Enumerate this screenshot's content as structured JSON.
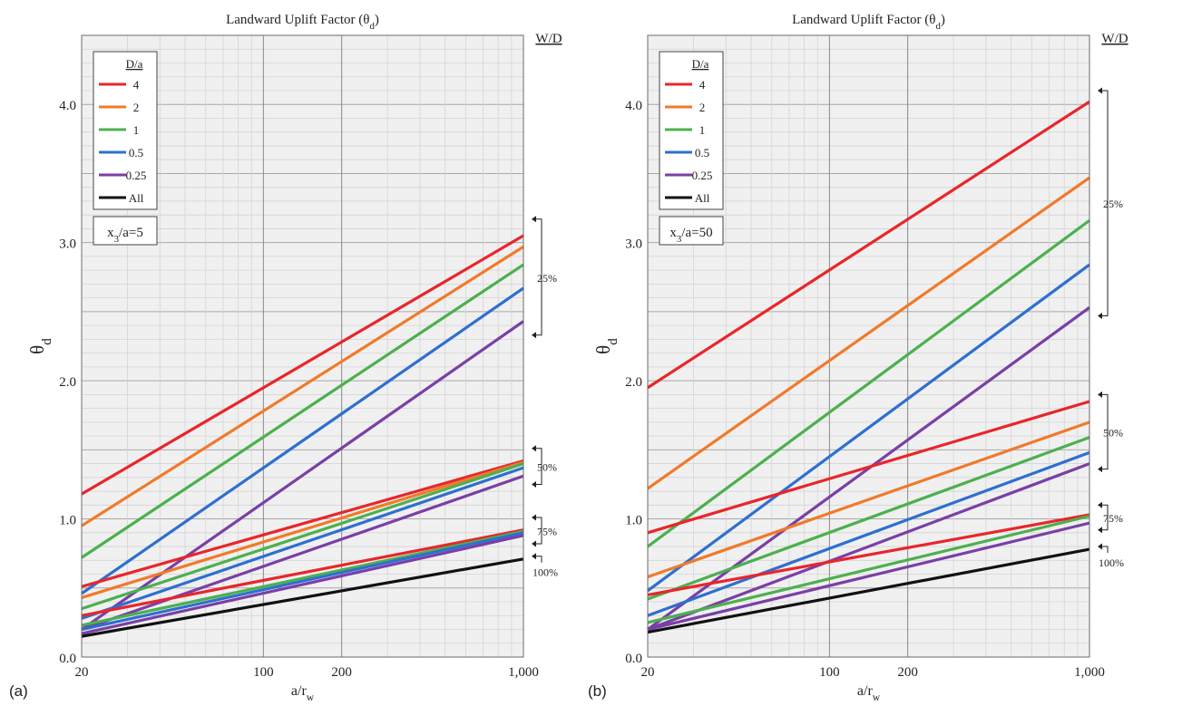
{
  "figure": {
    "panel_labels": [
      "(a)",
      "(b)"
    ]
  },
  "colors": {
    "4": "#e8262b",
    "2": "#f07a2a",
    "1": "#4cb04f",
    "0.5": "#2e6fd0",
    "0.25": "#7a3fa6",
    "All": "#111111",
    "plot_bg": "#f0f0f0",
    "grid_minor": "#d4d4d4",
    "grid_major": "#8a8a8a"
  },
  "chart_data": [
    {
      "type": "line",
      "panel": "(a)",
      "title": "Landward Uplift Factor (θd)",
      "xlabel": "a/rw",
      "ylabel": "θd",
      "xscale": "log",
      "xlim": [
        20,
        1000
      ],
      "ylim": [
        0,
        4.5
      ],
      "x_ticks": [
        "20",
        "100",
        "200",
        "1,000"
      ],
      "y_ticks": [
        "0.0",
        "1.0",
        "2.0",
        "3.0",
        "4.0"
      ],
      "grid": true,
      "legend": {
        "title": "D/a",
        "position": "top-left",
        "entries": [
          "4",
          "2",
          "1",
          "0.5",
          "0.25",
          "All"
        ]
      },
      "annotation": "x3/a=5",
      "group_header": "W/D",
      "groups": [
        "25%",
        "50%",
        "75%",
        "100%"
      ],
      "series": [
        {
          "group": "25%",
          "da": "4",
          "x": [
            20,
            1000
          ],
          "y": [
            1.18,
            3.05
          ]
        },
        {
          "group": "25%",
          "da": "2",
          "x": [
            20,
            1000
          ],
          "y": [
            0.95,
            2.97
          ]
        },
        {
          "group": "25%",
          "da": "1",
          "x": [
            20,
            1000
          ],
          "y": [
            0.72,
            2.84
          ]
        },
        {
          "group": "25%",
          "da": "0.5",
          "x": [
            20,
            1000
          ],
          "y": [
            0.46,
            2.67
          ]
        },
        {
          "group": "25%",
          "da": "0.25",
          "x": [
            20,
            1000
          ],
          "y": [
            0.2,
            2.43
          ]
        },
        {
          "group": "50%",
          "da": "4",
          "x": [
            20,
            1000
          ],
          "y": [
            0.51,
            1.42
          ]
        },
        {
          "group": "50%",
          "da": "2",
          "x": [
            20,
            1000
          ],
          "y": [
            0.43,
            1.41
          ]
        },
        {
          "group": "50%",
          "da": "1",
          "x": [
            20,
            1000
          ],
          "y": [
            0.35,
            1.4
          ]
        },
        {
          "group": "50%",
          "da": "0.5",
          "x": [
            20,
            1000
          ],
          "y": [
            0.28,
            1.37
          ]
        },
        {
          "group": "50%",
          "da": "0.25",
          "x": [
            20,
            1000
          ],
          "y": [
            0.2,
            1.31
          ]
        },
        {
          "group": "75%",
          "da": "4",
          "x": [
            20,
            1000
          ],
          "y": [
            0.3,
            0.92
          ]
        },
        {
          "group": "75%",
          "da": "1",
          "x": [
            20,
            1000
          ],
          "y": [
            0.23,
            0.91
          ]
        },
        {
          "group": "75%",
          "da": "0.5",
          "x": [
            20,
            1000
          ],
          "y": [
            0.2,
            0.9
          ]
        },
        {
          "group": "75%",
          "da": "0.25",
          "x": [
            20,
            1000
          ],
          "y": [
            0.17,
            0.88
          ]
        },
        {
          "group": "100%",
          "da": "All",
          "x": [
            20,
            1000
          ],
          "y": [
            0.15,
            0.71
          ]
        }
      ]
    },
    {
      "type": "line",
      "panel": "(b)",
      "title": "Landward Uplift Factor (θd)",
      "xlabel": "a/rw",
      "ylabel": "θd",
      "xscale": "log",
      "xlim": [
        20,
        1000
      ],
      "ylim": [
        0,
        4.5
      ],
      "x_ticks": [
        "20",
        "100",
        "200",
        "1,000"
      ],
      "y_ticks": [
        "0.0",
        "1.0",
        "2.0",
        "3.0",
        "4.0"
      ],
      "grid": true,
      "legend": {
        "title": "D/a",
        "position": "top-left",
        "entries": [
          "4",
          "2",
          "1",
          "0.5",
          "0.25",
          "All"
        ]
      },
      "annotation": "x3/a=50",
      "group_header": "W/D",
      "groups": [
        "25%",
        "50%",
        "75%",
        "100%"
      ],
      "series": [
        {
          "group": "25%",
          "da": "4",
          "x": [
            20,
            1000
          ],
          "y": [
            1.95,
            4.02
          ]
        },
        {
          "group": "25%",
          "da": "2",
          "x": [
            20,
            1000
          ],
          "y": [
            1.22,
            3.47
          ]
        },
        {
          "group": "25%",
          "da": "1",
          "x": [
            20,
            1000
          ],
          "y": [
            0.8,
            3.16
          ]
        },
        {
          "group": "25%",
          "da": "0.5",
          "x": [
            20,
            1000
          ],
          "y": [
            0.48,
            2.84
          ]
        },
        {
          "group": "25%",
          "da": "0.25",
          "x": [
            20,
            1000
          ],
          "y": [
            0.2,
            2.53
          ]
        },
        {
          "group": "50%",
          "da": "4",
          "x": [
            20,
            1000
          ],
          "y": [
            0.9,
            1.85
          ]
        },
        {
          "group": "50%",
          "da": "2",
          "x": [
            20,
            1000
          ],
          "y": [
            0.58,
            1.7
          ]
        },
        {
          "group": "50%",
          "da": "1",
          "x": [
            20,
            1000
          ],
          "y": [
            0.42,
            1.59
          ]
        },
        {
          "group": "50%",
          "da": "0.5",
          "x": [
            20,
            1000
          ],
          "y": [
            0.3,
            1.48
          ]
        },
        {
          "group": "50%",
          "da": "0.25",
          "x": [
            20,
            1000
          ],
          "y": [
            0.2,
            1.4
          ]
        },
        {
          "group": "75%",
          "da": "4",
          "x": [
            20,
            1000
          ],
          "y": [
            0.45,
            1.03
          ]
        },
        {
          "group": "75%",
          "da": "1",
          "x": [
            20,
            1000
          ],
          "y": [
            0.25,
            1.02
          ]
        },
        {
          "group": "75%",
          "da": "0.25",
          "x": [
            20,
            1000
          ],
          "y": [
            0.2,
            0.97
          ]
        },
        {
          "group": "100%",
          "da": "All",
          "x": [
            20,
            1000
          ],
          "y": [
            0.18,
            0.78
          ]
        }
      ]
    }
  ]
}
